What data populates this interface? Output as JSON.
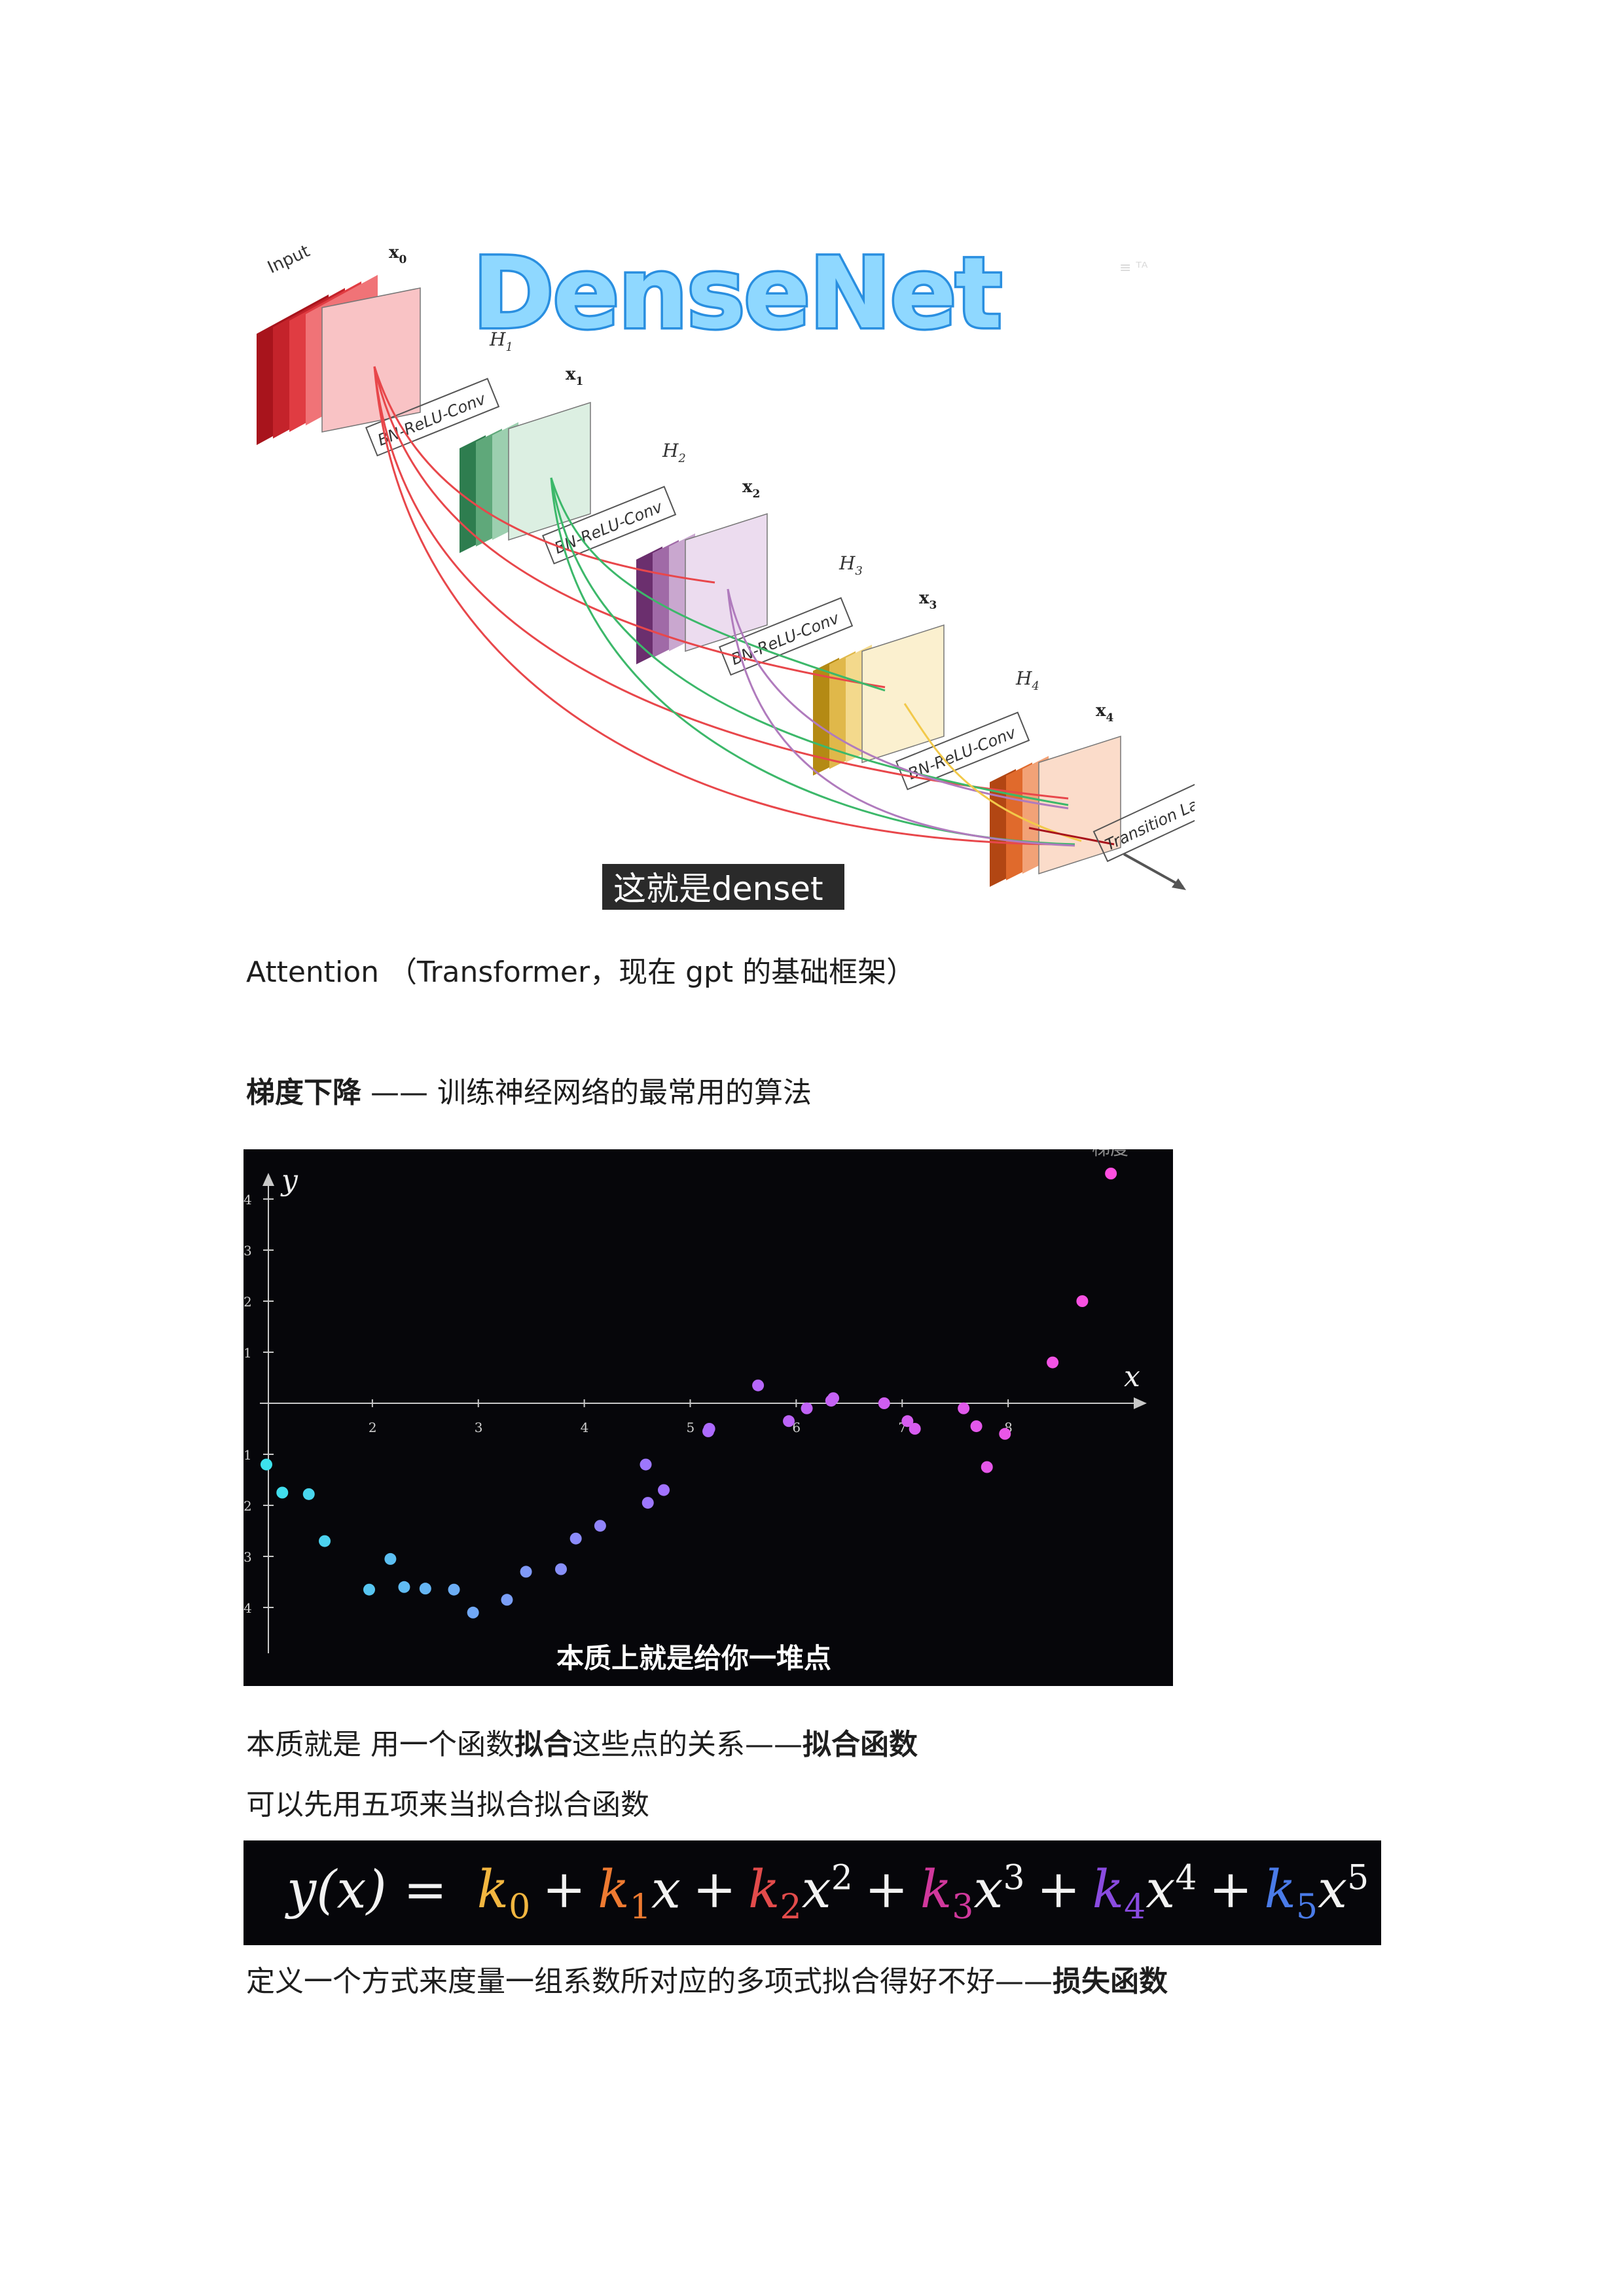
{
  "densenet_figure": {
    "title": "DenseNet",
    "caption": "这就是denset",
    "input_label": "Input",
    "feature_labels": [
      "x",
      "x",
      "x",
      "x",
      "x"
    ],
    "feature_subscripts": [
      "0",
      "1",
      "2",
      "3",
      "4"
    ],
    "h_labels": [
      "H",
      "H",
      "H",
      "H"
    ],
    "h_subscripts": [
      "1",
      "2",
      "3",
      "4"
    ],
    "layer_label": "BN-ReLU-Conv",
    "transition_label": "Transition Layer",
    "watermark": "≡ ᵀᴬ"
  },
  "attention_line": "Attention  （Transformer，现在 gpt 的基础框架）",
  "gradient_heading": {
    "bold": "梯度下降",
    "rest": " —— 训练神经网络的最常用的算法"
  },
  "scatter_figure": {
    "caption": "本质上就是给你一堆点",
    "corner_text": "梯度",
    "chart_data": {
      "type": "scatter",
      "xlabel": "x",
      "ylabel": "y",
      "xlim": [
        1,
        9.0
      ],
      "ylim": [
        -4.3,
        4.3
      ],
      "x_ticks": [
        "2",
        "3",
        "4",
        "5",
        "6",
        "7",
        "8"
      ],
      "y_ticks": [
        "4",
        "3",
        "2",
        "1",
        "1",
        "2",
        "3",
        "4"
      ],
      "points": [
        [
          1.0,
          -1.2
        ],
        [
          1.15,
          -1.75
        ],
        [
          1.4,
          -1.78
        ],
        [
          1.55,
          -2.7
        ],
        [
          1.97,
          -3.65
        ],
        [
          2.17,
          -3.05
        ],
        [
          2.3,
          -3.6
        ],
        [
          2.5,
          -3.63
        ],
        [
          2.77,
          -3.65
        ],
        [
          2.95,
          -4.1
        ],
        [
          3.27,
          -3.85
        ],
        [
          3.45,
          -3.3
        ],
        [
          3.78,
          -3.25
        ],
        [
          3.92,
          -2.65
        ],
        [
          4.15,
          -2.4
        ],
        [
          4.58,
          -1.2
        ],
        [
          4.6,
          -1.95
        ],
        [
          4.75,
          -1.7
        ],
        [
          5.17,
          -0.55
        ],
        [
          5.18,
          -0.5
        ],
        [
          5.64,
          0.35
        ],
        [
          5.93,
          -0.35
        ],
        [
          6.1,
          -0.1
        ],
        [
          6.33,
          0.05
        ],
        [
          6.35,
          0.1
        ],
        [
          6.83,
          0.0
        ],
        [
          7.05,
          -0.35
        ],
        [
          7.12,
          -0.5
        ],
        [
          7.58,
          -0.1
        ],
        [
          7.7,
          -0.45
        ],
        [
          7.8,
          -1.25
        ],
        [
          7.97,
          -0.6
        ],
        [
          8.42,
          0.8
        ],
        [
          8.7,
          2.0
        ],
        [
          8.97,
          4.5
        ]
      ],
      "colors": [
        "#3de2ec",
        "#a86bff",
        "#ff4fe0"
      ]
    }
  },
  "essence_line": {
    "part1": "本质就是  用一个函数",
    "bold1": "拟合",
    "part2": "这些点的关系——",
    "bold2": "拟合函数"
  },
  "five_terms_line": "可以先用五项来当拟合拟合函数",
  "formula": {
    "lhs": "y(x) =",
    "coefficients": [
      {
        "symbol": "k",
        "sub": "0",
        "color": "#f2b640",
        "var": "",
        "pow": ""
      },
      {
        "symbol": "k",
        "sub": "1",
        "color": "#ee7a31",
        "var": "x",
        "pow": ""
      },
      {
        "symbol": "k",
        "sub": "2",
        "color": "#e24b4b",
        "var": "x",
        "pow": "2"
      },
      {
        "symbol": "k",
        "sub": "3",
        "color": "#d0389c",
        "var": "x",
        "pow": "3"
      },
      {
        "symbol": "k",
        "sub": "4",
        "color": "#8a4be0",
        "var": "x",
        "pow": "4"
      },
      {
        "symbol": "k",
        "sub": "5",
        "color": "#4a7be8",
        "var": "x",
        "pow": "5"
      }
    ]
  },
  "loss_line": {
    "text": "定义一个方式来度量一组系数所对应的多项式拟合得好不好——",
    "bold": "损失函数"
  }
}
